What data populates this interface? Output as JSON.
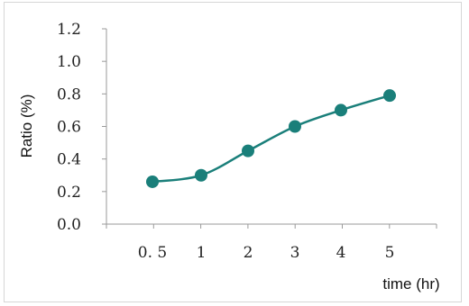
{
  "chart_data": {
    "type": "line",
    "xlabel": "time (hr)",
    "ylabel": "Ratio (%)",
    "categories": [
      "0.5",
      "1",
      "2",
      "3",
      "4",
      "5"
    ],
    "y_tick_labels": [
      "1.2",
      "1.0",
      "0.8",
      "0.6",
      "0.4",
      "0.2",
      "0.0"
    ],
    "x_tick_labels": [
      "0. 5",
      "1",
      "2",
      "3",
      "4",
      "5"
    ],
    "ylim": [
      0,
      1.2
    ],
    "grid": false,
    "series": [
      {
        "values": [
          0.26,
          0.3,
          0.45,
          0.6,
          0.7,
          0.79
        ]
      }
    ],
    "colors": {
      "series": "#1a7f7a",
      "axis": "#9a9a9a"
    }
  }
}
